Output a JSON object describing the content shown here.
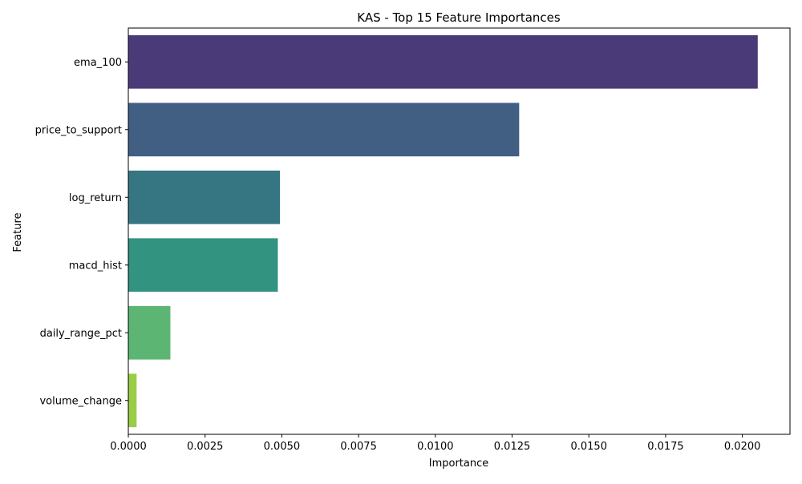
{
  "chart_data": {
    "type": "bar",
    "orientation": "horizontal",
    "title": "KAS - Top 15 Feature Importances",
    "xlabel": "Importance",
    "ylabel": "Feature",
    "categories": [
      "ema_100",
      "price_to_support",
      "log_return",
      "macd_hist",
      "daily_range_pct",
      "volume_change"
    ],
    "values": [
      0.0205,
      0.01273,
      0.00494,
      0.00487,
      0.00137,
      0.00027
    ],
    "colors": [
      "#4b3a78",
      "#405f82",
      "#367682",
      "#319380",
      "#5cb572",
      "#9acd46"
    ],
    "xlim": [
      0,
      0.02155
    ],
    "xticks": [
      0.0,
      0.0025,
      0.005,
      0.0075,
      0.01,
      0.0125,
      0.015,
      0.0175,
      0.02
    ],
    "xtick_labels": [
      "0.0000",
      "0.0025",
      "0.0050",
      "0.0075",
      "0.0100",
      "0.0125",
      "0.0150",
      "0.0175",
      "0.0200"
    ],
    "grid": false,
    "legend": "none"
  }
}
